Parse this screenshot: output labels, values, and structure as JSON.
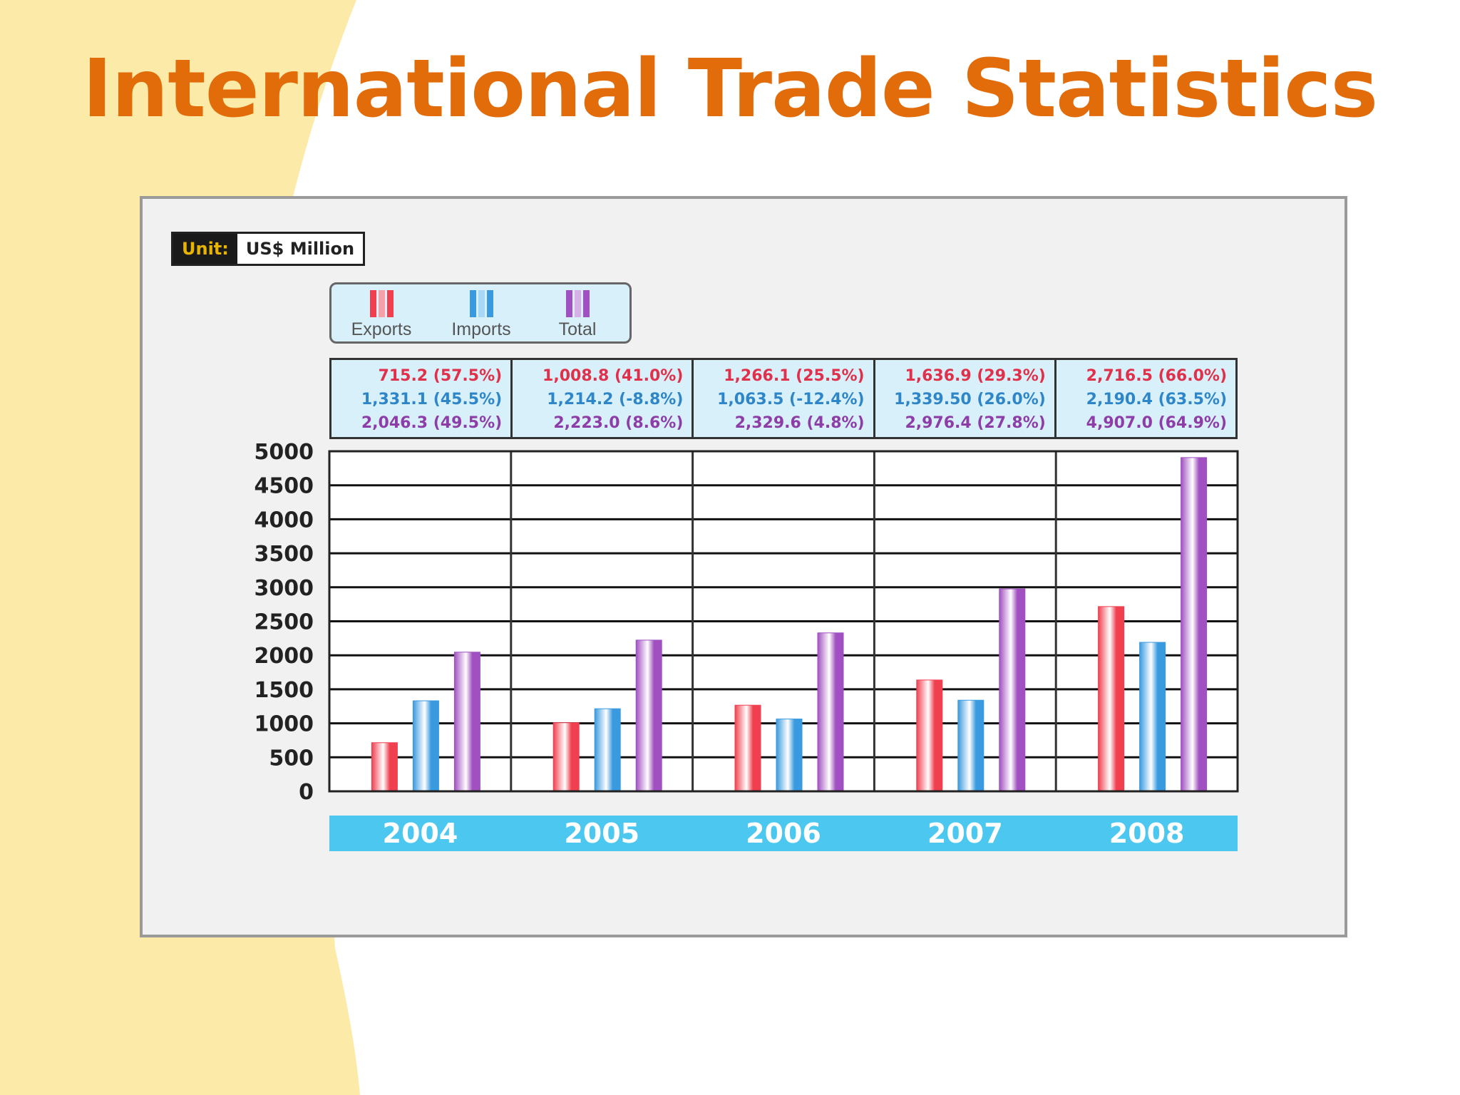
{
  "slide": {
    "title": "International Trade Statistics",
    "colors": {
      "title": "#E36C0A",
      "accent_band": "#FCEBA8"
    }
  },
  "unit": {
    "label": "Unit:",
    "value": "US$ Million"
  },
  "legend": [
    {
      "name": "Exports",
      "color": "#F04050"
    },
    {
      "name": "Imports",
      "color": "#3A9AE0"
    },
    {
      "name": "Total",
      "color": "#A050C0"
    }
  ],
  "summary_table": [
    {
      "exports": "715.2 (57.5%)",
      "imports": "1,331.1 (45.5%)",
      "total": "2,046.3 (49.5%)"
    },
    {
      "exports": "1,008.8 (41.0%)",
      "imports": "1,214.2 (-8.8%)",
      "total": "2,223.0 (8.6%)"
    },
    {
      "exports": "1,266.1 (25.5%)",
      "imports": "1,063.5 (-12.4%)",
      "total": "2,329.6 (4.8%)"
    },
    {
      "exports": "1,636.9 (29.3%)",
      "imports": "1,339.50 (26.0%)",
      "total": "2,976.4 (27.8%)"
    },
    {
      "exports": "2,716.5 (66.0%)",
      "imports": "2,190.4 (63.5%)",
      "total": "4,907.0 (64.9%)"
    }
  ],
  "chart_data": {
    "type": "bar",
    "title": "International Trade Statistics",
    "unit": "US$ Million",
    "categories": [
      "2004",
      "2005",
      "2006",
      "2007",
      "2008"
    ],
    "series": [
      {
        "name": "Exports",
        "color": "#F04050",
        "values": [
          715.2,
          1008.8,
          1266.1,
          1636.9,
          2716.5
        ]
      },
      {
        "name": "Imports",
        "color": "#3A9AE0",
        "values": [
          1331.1,
          1214.2,
          1063.5,
          1339.5,
          2190.4
        ]
      },
      {
        "name": "Total",
        "color": "#A050C0",
        "values": [
          2046.3,
          2223.0,
          2329.6,
          2976.4,
          4907.0
        ]
      }
    ],
    "ylim": [
      0,
      5000
    ],
    "yticks": [
      "5000",
      "4500",
      "4000",
      "3500",
      "3000",
      "2500",
      "2000",
      "1500",
      "1000",
      "500",
      "0"
    ],
    "grid": true,
    "legend_position": "top-left"
  }
}
